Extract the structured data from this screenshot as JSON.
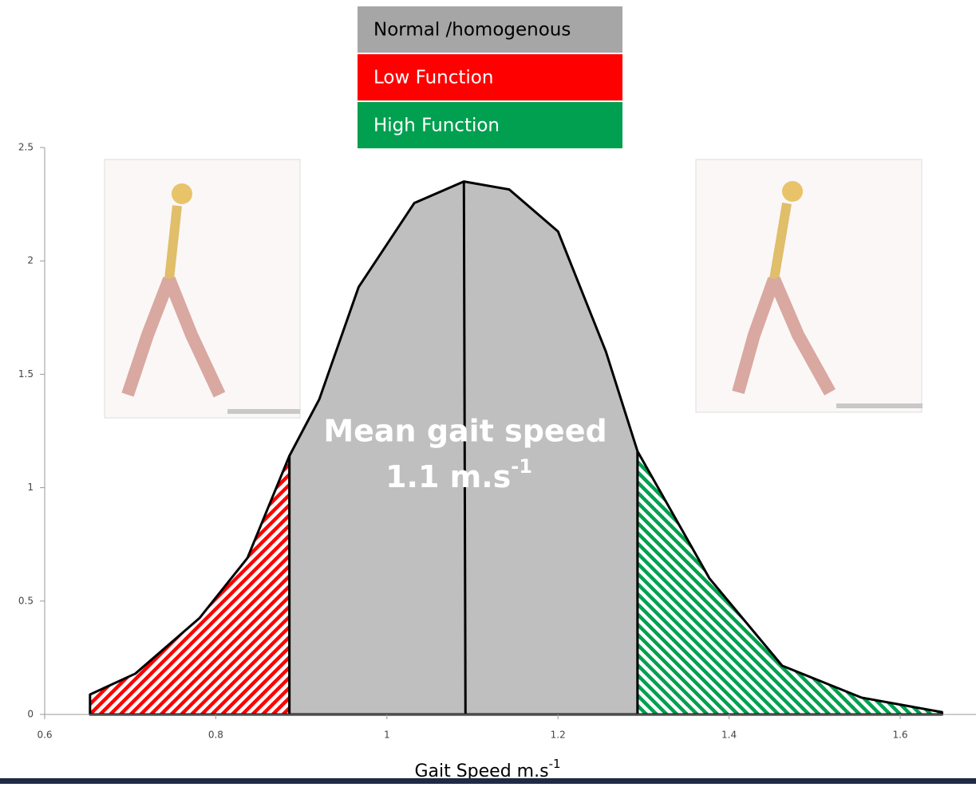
{
  "chart_data": {
    "type": "area",
    "x_label": {
      "text": "Gait Speed m.s",
      "sup": "-1"
    },
    "annotation": {
      "line1": "Mean gait speed",
      "line2": "1.1 m.s",
      "sup": "-1"
    },
    "mean_line_x": 1.09,
    "xlim": [
      0.6,
      1.68
    ],
    "xticks": [
      0.6,
      0.8,
      1,
      1.2,
      1.4,
      1.6
    ],
    "ylim": [
      0,
      2.5
    ],
    "yticks": [
      0,
      0.5,
      1,
      1.5,
      2,
      2.5
    ],
    "series": [
      {
        "name": "Normal /homogenous",
        "color": "#bfbfbf",
        "hatched": false,
        "x": [
          0.886,
          0.921,
          0.967,
          1.032,
          1.09,
          1.143,
          1.2,
          1.256,
          1.293
        ],
        "values": [
          1.14,
          1.39,
          1.885,
          2.255,
          2.35,
          2.315,
          2.13,
          1.6,
          1.16
        ]
      },
      {
        "name": "Low Function",
        "color": "#ff0000",
        "hatched": true,
        "x": [
          0.653,
          0.706,
          0.781,
          0.837,
          0.886
        ],
        "values": [
          0.088,
          0.18,
          0.425,
          0.69,
          1.14
        ]
      },
      {
        "name": "High Function",
        "color": "#00a050",
        "hatched": true,
        "x": [
          1.293,
          1.377,
          1.462,
          1.555,
          1.649
        ],
        "values": [
          1.16,
          0.6,
          0.215,
          0.074,
          0.01
        ]
      }
    ]
  }
}
